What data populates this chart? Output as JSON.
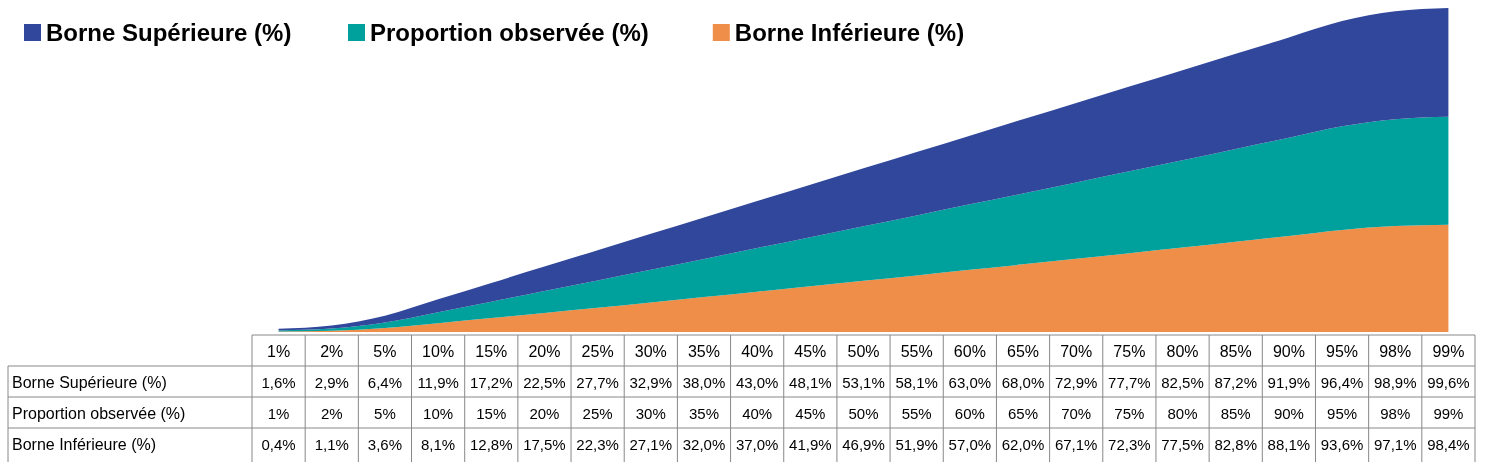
{
  "chart_data": {
    "type": "area",
    "stacked": true,
    "legend": "top left",
    "categories": [
      "1%",
      "2%",
      "5%",
      "10%",
      "15%",
      "20%",
      "25%",
      "30%",
      "35%",
      "40%",
      "45%",
      "50%",
      "55%",
      "60%",
      "65%",
      "70%",
      "75%",
      "80%",
      "85%",
      "90%",
      "95%",
      "98%",
      "99%"
    ],
    "series": [
      {
        "name": "Borne Inférieure (%)",
        "color": "#ee8e48",
        "values": [
          0.4,
          1.1,
          3.6,
          8.1,
          12.8,
          17.5,
          22.3,
          27.1,
          32.0,
          37.0,
          41.9,
          46.9,
          51.9,
          57.0,
          62.0,
          67.1,
          72.3,
          77.5,
          82.8,
          88.1,
          93.6,
          97.1,
          98.4
        ],
        "value_labels": [
          "0,4%",
          "1,1%",
          "3,6%",
          "8,1%",
          "12,8%",
          "17,5%",
          "22,3%",
          "27,1%",
          "32,0%",
          "37,0%",
          "41,9%",
          "46,9%",
          "51,9%",
          "57,0%",
          "62,0%",
          "67,1%",
          "72,3%",
          "77,5%",
          "82,8%",
          "88,1%",
          "93,6%",
          "97,1%",
          "98,4%"
        ]
      },
      {
        "name": "Proportion observée (%)",
        "color": "#00a09c",
        "values": [
          1,
          2,
          5,
          10,
          15,
          20,
          25,
          30,
          35,
          40,
          45,
          50,
          55,
          60,
          65,
          70,
          75,
          80,
          85,
          90,
          95,
          98,
          99
        ],
        "value_labels": [
          "1%",
          "2%",
          "5%",
          "10%",
          "15%",
          "20%",
          "25%",
          "30%",
          "35%",
          "40%",
          "45%",
          "50%",
          "55%",
          "60%",
          "65%",
          "70%",
          "75%",
          "80%",
          "85%",
          "90%",
          "95%",
          "98%",
          "99%"
        ]
      },
      {
        "name": "Borne Supérieure (%)",
        "color": "#31479c",
        "values": [
          1.6,
          2.9,
          6.4,
          11.9,
          17.2,
          22.5,
          27.7,
          32.9,
          38.0,
          43.0,
          48.1,
          53.1,
          58.1,
          63.0,
          68.0,
          72.9,
          77.7,
          82.5,
          87.2,
          91.9,
          96.4,
          98.9,
          99.6
        ],
        "value_labels": [
          "1,6%",
          "2,9%",
          "6,4%",
          "11,9%",
          "17,2%",
          "22,5%",
          "27,7%",
          "32,9%",
          "38,0%",
          "43,0%",
          "48,1%",
          "53,1%",
          "58,1%",
          "63,0%",
          "68,0%",
          "72,9%",
          "77,7%",
          "82,5%",
          "87,2%",
          "91,9%",
          "96,4%",
          "98,9%",
          "99,6%"
        ]
      }
    ]
  }
}
